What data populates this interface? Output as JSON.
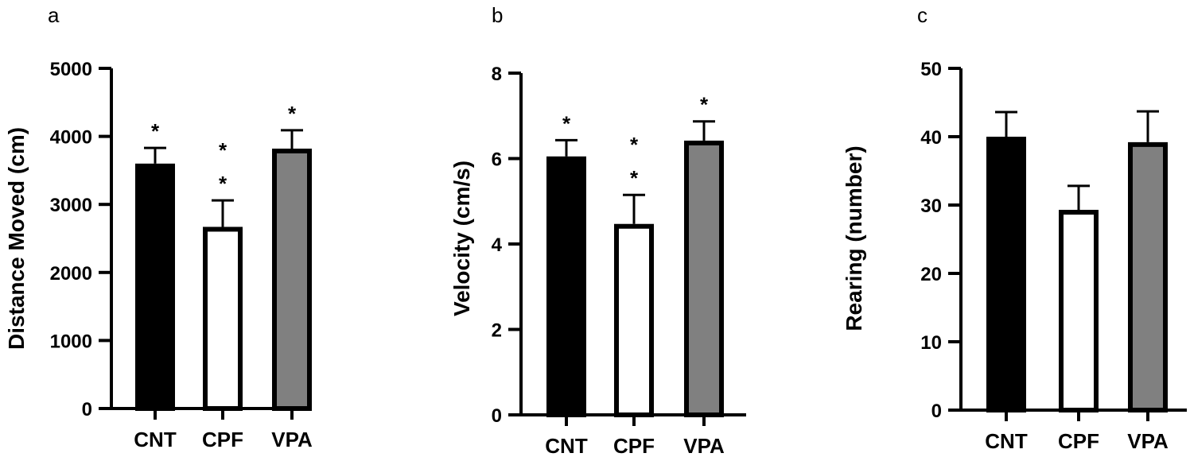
{
  "chart_data": [
    {
      "panel": "a",
      "type": "bar",
      "categories": [
        "CNT",
        "CPF",
        "VPA"
      ],
      "values": [
        3600,
        2670,
        3820
      ],
      "errors": [
        230,
        390,
        270
      ],
      "fills": [
        "#000000",
        "#ffffff",
        "#808080"
      ],
      "significance": [
        "*",
        "* *",
        "*"
      ],
      "ylabel": "Distance Moved (cm)",
      "ylim": [
        0,
        5000
      ],
      "yticks": [
        0,
        1000,
        2000,
        3000,
        4000,
        5000
      ],
      "ytick_labels": [
        "0",
        "1000",
        "2000",
        "3000",
        "4000",
        "5000"
      ]
    },
    {
      "panel": "b",
      "type": "bar",
      "categories": [
        "CNT",
        "CPF",
        "VPA"
      ],
      "values": [
        6.05,
        4.47,
        6.42
      ],
      "errors": [
        0.38,
        0.68,
        0.45
      ],
      "fills": [
        "#000000",
        "#ffffff",
        "#808080"
      ],
      "significance": [
        "*",
        "* *",
        "*"
      ],
      "ylabel": "Velocity (cm/s)",
      "ylim": [
        0,
        8
      ],
      "yticks": [
        0,
        2,
        4,
        6,
        8
      ],
      "ytick_labels": [
        "0",
        "2",
        "4",
        "6",
        "8"
      ]
    },
    {
      "panel": "c",
      "type": "bar",
      "categories": [
        "CNT",
        "CPF",
        "VPA"
      ],
      "values": [
        40,
        29.3,
        39.2
      ],
      "errors": [
        3.6,
        3.5,
        4.5
      ],
      "fills": [
        "#000000",
        "#ffffff",
        "#808080"
      ],
      "significance": [
        "",
        "",
        ""
      ],
      "ylabel": "Rearing (number)",
      "ylim": [
        0,
        50
      ],
      "yticks": [
        0,
        10,
        20,
        30,
        40,
        50
      ],
      "ytick_labels": [
        "0",
        "10",
        "20",
        "30",
        "40",
        "50"
      ]
    }
  ]
}
